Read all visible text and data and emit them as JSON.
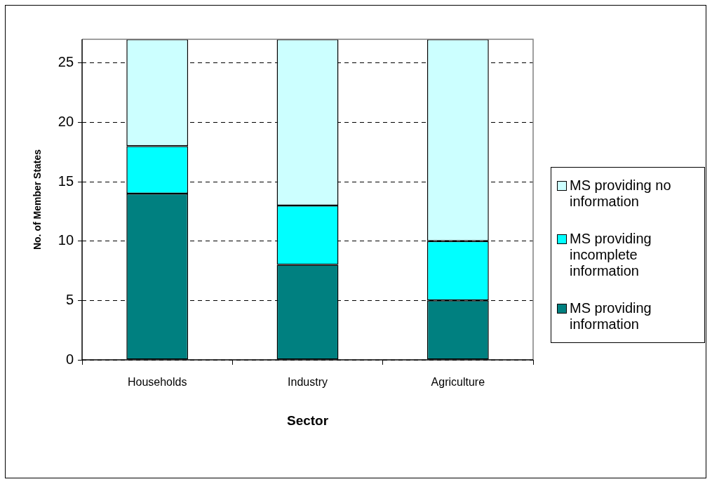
{
  "chart_data": {
    "type": "bar",
    "xlabel": "Sector",
    "ylabel": "No. of Member States",
    "categories": [
      "Households",
      "Industry",
      "Agriculture"
    ],
    "stacked": true,
    "series": [
      {
        "name": "MS providing information",
        "color": "#008080",
        "values": [
          14,
          8,
          5
        ]
      },
      {
        "name": "MS providing incomplete information",
        "color": "#00ffff",
        "values": [
          4,
          5,
          5
        ]
      },
      {
        "name": "MS providing no information",
        "color": "#ccffff",
        "values": [
          9,
          14,
          17
        ]
      }
    ],
    "ylim": [
      0,
      27
    ],
    "yticks": [
      0,
      5,
      10,
      15,
      20,
      25
    ],
    "grid": "y",
    "legend": "right"
  }
}
